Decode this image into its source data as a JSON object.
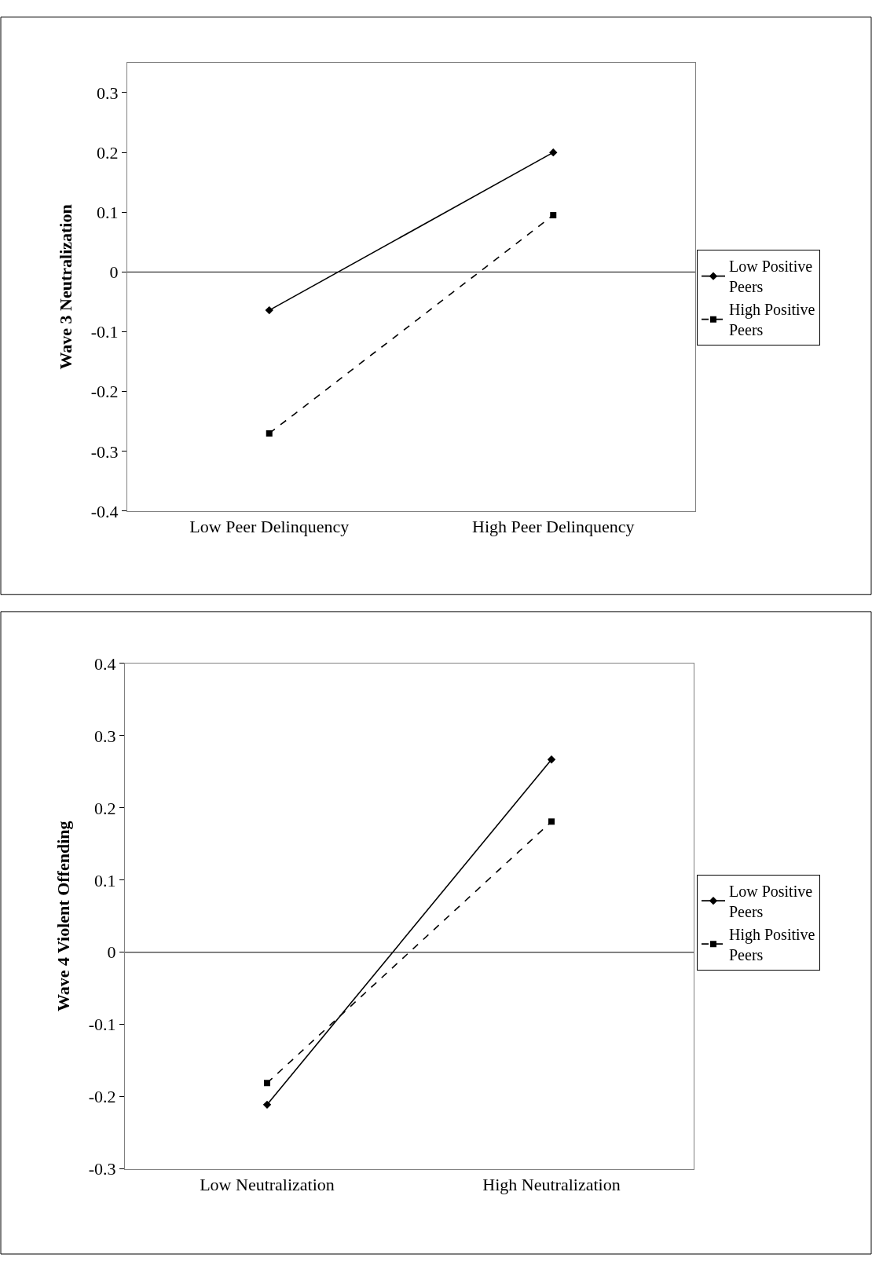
{
  "chart_data": [
    {
      "type": "line",
      "ylabel": "Wave 3 Neutralization",
      "categories": [
        "Low Peer Delinquency",
        "High Peer Delinquency"
      ],
      "series": [
        {
          "name": "Low Positive Peers",
          "color": "#000000",
          "values": [
            -0.064,
            0.2
          ],
          "marker": "diamond",
          "line_style": "solid"
        },
        {
          "name": "High Positive Peers",
          "color": "#000000",
          "values": [
            -0.27,
            0.095
          ],
          "marker": "square",
          "line_style": "dashed"
        }
      ],
      "ylim": [
        -0.4,
        0.35
      ],
      "yticks": [
        -0.4,
        -0.3,
        -0.2,
        -0.1,
        0,
        0.1,
        0.2,
        0.3
      ],
      "legend": "right",
      "ref_lines": [
        {
          "axis": "y",
          "value": 0,
          "color": "#000000"
        }
      ]
    },
    {
      "type": "line",
      "ylabel": "Wave 4 Violent Offending",
      "categories": [
        "Low Neutralization",
        "High Neutralization"
      ],
      "series": [
        {
          "name": "Low Positive Peers",
          "color": "#000000",
          "values": [
            -0.211,
            0.267
          ],
          "marker": "diamond",
          "line_style": "solid"
        },
        {
          "name": "High Positive Peers",
          "color": "#000000",
          "values": [
            -0.181,
            0.181
          ],
          "marker": "square",
          "line_style": "dashed"
        }
      ],
      "ylim": [
        -0.3,
        0.4
      ],
      "yticks": [
        -0.3,
        -0.2,
        -0.1,
        0,
        0.1,
        0.2,
        0.3,
        0.4
      ],
      "legend": "right",
      "ref_lines": [
        {
          "axis": "y",
          "value": 0,
          "color": "#000000"
        }
      ]
    }
  ]
}
